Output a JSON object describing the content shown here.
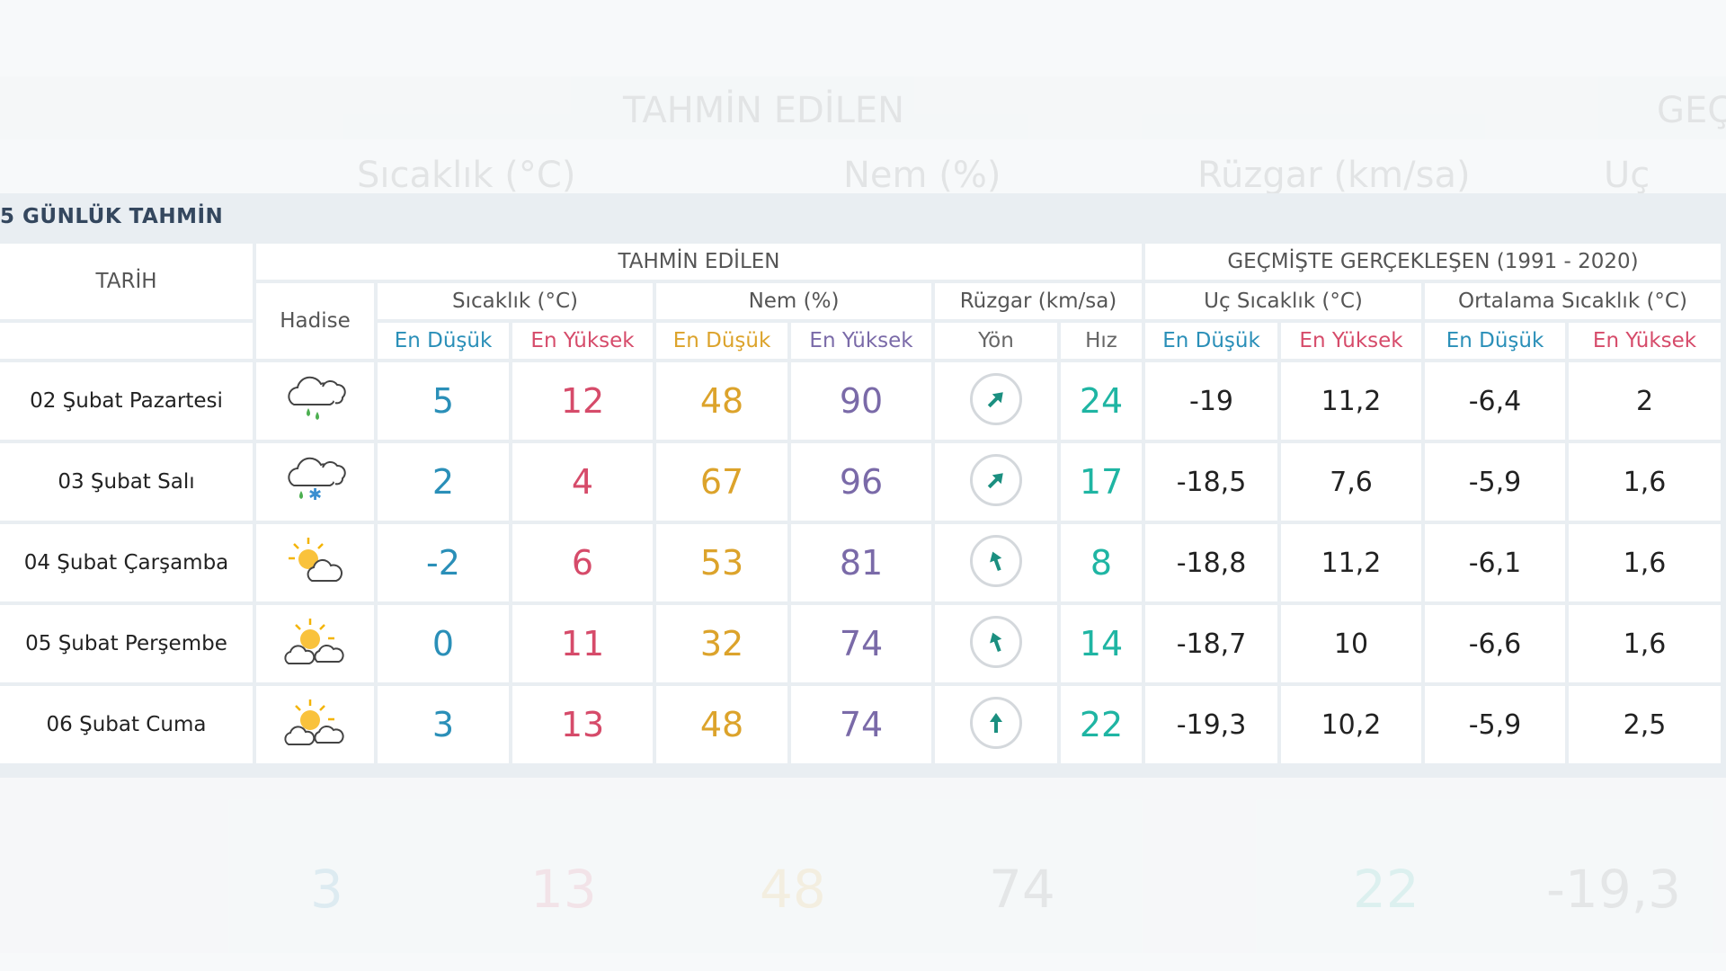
{
  "panel_title": "5 GÜNLÜK TAHMİN",
  "headers": {
    "date": "TARİH",
    "forecast_group": "TAHMİN EDİLEN",
    "history_group": "GEÇMİŞTE GERÇEKLEŞEN (1991 - 2020)",
    "phenomenon": "Hadise",
    "temperature": "Sıcaklık (°C)",
    "humidity": "Nem (%)",
    "wind": "Rüzgar (km/sa)",
    "extreme_temp": "Uç Sıcaklık (°C)",
    "avg_temp": "Ortalama Sıcaklık (°C)",
    "min": "En Düşük",
    "max": "En Yüksek",
    "direction": "Yön",
    "speed": "Hız"
  },
  "rows": [
    {
      "date": "02 Şubat Pazartesi",
      "icon": "rain-cloud-icon",
      "tmin": "5",
      "tmax": "12",
      "hmin": "48",
      "hmax": "90",
      "wind_dir_deg": 45,
      "wind_speed": "24",
      "xmin": "-19",
      "xmax": "11,2",
      "amin": "-6,4",
      "amax": "2"
    },
    {
      "date": "03 Şubat Salı",
      "icon": "sleet-cloud-icon",
      "tmin": "2",
      "tmax": "4",
      "hmin": "67",
      "hmax": "96",
      "wind_dir_deg": 45,
      "wind_speed": "17",
      "xmin": "-18,5",
      "xmax": "7,6",
      "amin": "-5,9",
      "amax": "1,6"
    },
    {
      "date": "04 Şubat Çarşamba",
      "icon": "partly-cloudy-icon",
      "tmin": "-2",
      "tmax": "6",
      "hmin": "53",
      "hmax": "81",
      "wind_dir_deg": -20,
      "wind_speed": "8",
      "xmin": "-18,8",
      "xmax": "11,2",
      "amin": "-6,1",
      "amax": "1,6"
    },
    {
      "date": "05 Şubat Perşembe",
      "icon": "sun-clouds-icon",
      "tmin": "0",
      "tmax": "11",
      "hmin": "32",
      "hmax": "74",
      "wind_dir_deg": -20,
      "wind_speed": "14",
      "xmin": "-18,7",
      "xmax": "10",
      "amin": "-6,6",
      "amax": "1,6"
    },
    {
      "date": "06 Şubat Cuma",
      "icon": "sun-clouds-icon",
      "tmin": "3",
      "tmax": "13",
      "hmin": "48",
      "hmax": "74",
      "wind_dir_deg": 0,
      "wind_speed": "22",
      "xmin": "-19,3",
      "xmax": "10,2",
      "amin": "-5,9",
      "amax": "2,5"
    }
  ],
  "colors": {
    "temp_min": "#2a8fb8",
    "temp_max": "#d64b6a",
    "hum_min": "#dca32b",
    "hum_max": "#7a6aa8",
    "wind": "#1fb5a3",
    "title": "#34475e"
  }
}
